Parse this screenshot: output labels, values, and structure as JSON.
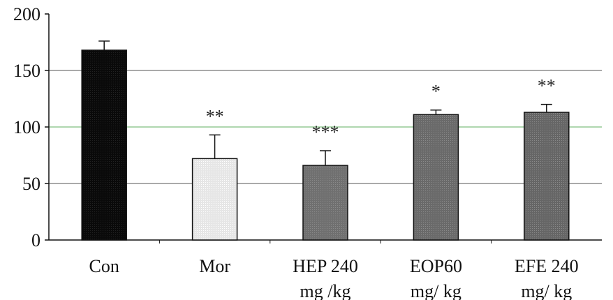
{
  "chart_data": {
    "type": "bar",
    "categories": [
      [
        "Con"
      ],
      [
        "Mor"
      ],
      [
        "HEP 240",
        "mg /kg"
      ],
      [
        "EOP60",
        "mg/ kg"
      ],
      [
        "EFE 240",
        "mg/ kg"
      ]
    ],
    "values": [
      168,
      72,
      66,
      111,
      113
    ],
    "errors": [
      8,
      21,
      13,
      4,
      7
    ],
    "significance": [
      "",
      "**",
      "***",
      "*",
      "**"
    ],
    "bar_colors": [
      "#0a0a0a",
      "#e6e6e6",
      "#707070",
      "#6a6a6a",
      "#666666"
    ],
    "ylim": [
      0,
      200
    ],
    "yticks": [
      "0",
      "50",
      "100",
      "150",
      "200"
    ],
    "grid": true,
    "title": "",
    "xlabel": "",
    "ylabel": ""
  }
}
